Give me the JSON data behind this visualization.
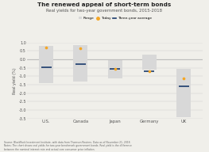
{
  "title": "The renewed appeal of short-term bonds",
  "subtitle": "Real yields for two-year government bonds, 2015-2018",
  "categories": [
    "U.S.",
    "Canada",
    "Japan",
    "Germany",
    "UK"
  ],
  "range_low": [
    -1.4,
    -1.3,
    -1.1,
    -0.6,
    -3.4
  ],
  "range_high": [
    0.8,
    0.85,
    -0.05,
    0.3,
    -0.55
  ],
  "today": [
    0.72,
    0.65,
    -0.58,
    -0.72,
    -1.1
  ],
  "avg3yr": [
    -0.45,
    -0.3,
    -0.58,
    -0.72,
    -1.6
  ],
  "range_color": "#d8d8d8",
  "today_color": "#f5a623",
  "avg_color": "#1a3a6b",
  "background_color": "#f0efea",
  "ylim": [
    -3.5,
    1.0
  ],
  "yticks": [
    1.0,
    0.5,
    0.0,
    -0.5,
    -1.0,
    -1.5,
    -2.0,
    -2.5,
    -3.0,
    -3.5
  ],
  "ylabel": "Real yield (%)",
  "footnote": "Source: BlackRock Investment Institute, with data from Thomson Reuters. Data as of November 21, 2018.\nNotes: The chart shows real yields for two-year benchmark government bonds. Real yield is the difference\nbetween the nominal interest rate and actual core consumer price inflation.",
  "legend_range": "Range",
  "legend_today": "Today",
  "legend_avg": "Three-year average"
}
